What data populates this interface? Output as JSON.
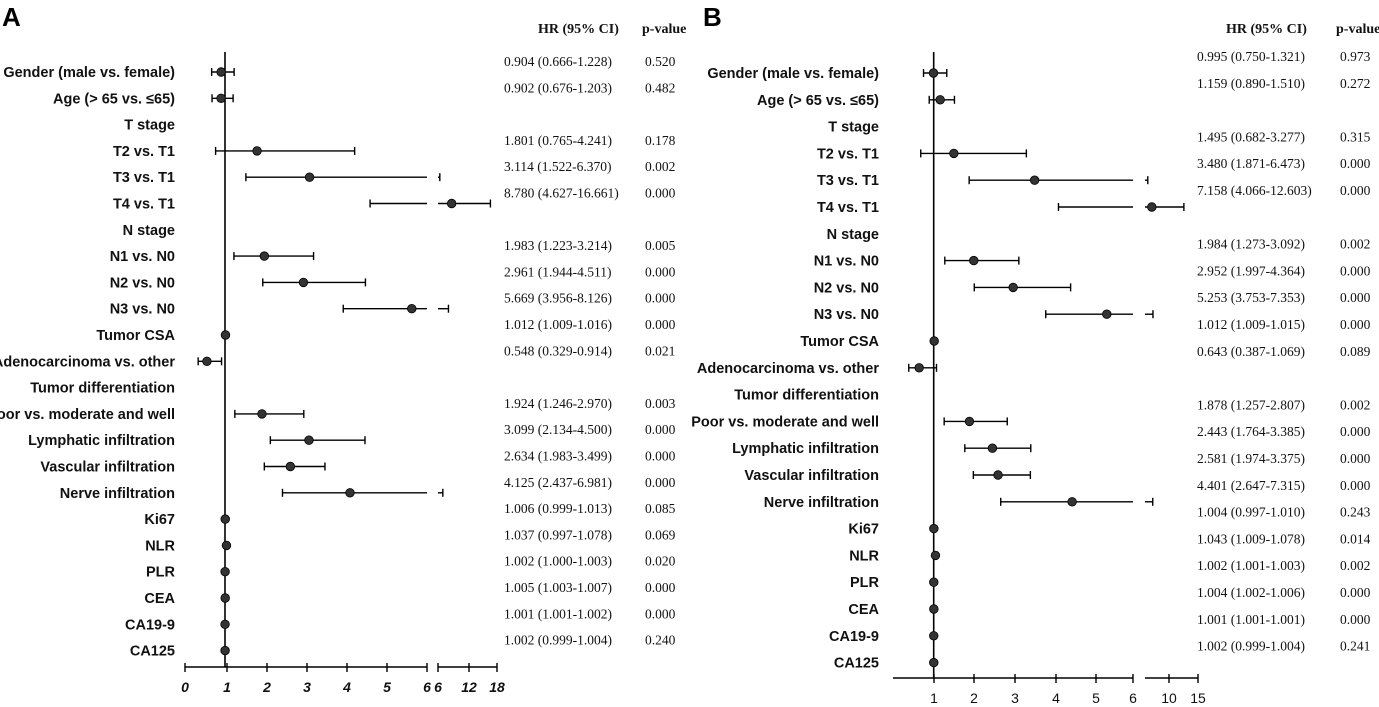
{
  "chart_data": [
    {
      "panel": "A",
      "type": "forest",
      "headers": {
        "hr": "HR (95% CI)",
        "p": "p-value"
      },
      "axis": {
        "ticks": [
          "0",
          "1",
          "2",
          "3",
          "4",
          "5",
          "6",
          "6",
          "12",
          "18"
        ]
      },
      "rows": [
        {
          "label": "Gender (male vs. female)",
          "hr": 0.904,
          "lo": 0.666,
          "hi": 1.228,
          "ci_text": "0.904 (0.666-1.228)",
          "p": "0.520"
        },
        {
          "label": "Age (> 65 vs. ≤65)",
          "hr": 0.902,
          "lo": 0.676,
          "hi": 1.203,
          "ci_text": "0.902 (0.676-1.203)",
          "p": "0.482"
        },
        {
          "label": "T stage",
          "hr": null
        },
        {
          "label": "T2 vs. T1",
          "hr": 1.801,
          "lo": 0.765,
          "hi": 4.241,
          "ci_text": "1.801 (0.765-4.241)",
          "p": "0.178"
        },
        {
          "label": "T3 vs. T1",
          "hr": 3.114,
          "lo": 1.522,
          "hi": 6.37,
          "ci_text": "3.114 (1.522-6.370)",
          "p": "0.002"
        },
        {
          "label": "T4 vs. T1",
          "hr": 8.78,
          "lo": 4.627,
          "hi": 16.661,
          "ci_text": "8.780 (4.627-16.661)",
          "p": "0.000"
        },
        {
          "label": "N stage",
          "hr": null
        },
        {
          "label": "N1 vs. N0",
          "hr": 1.983,
          "lo": 1.223,
          "hi": 3.214,
          "ci_text": "1.983 (1.223-3.214)",
          "p": "0.005"
        },
        {
          "label": "N2 vs. N0",
          "hr": 2.961,
          "lo": 1.944,
          "hi": 4.511,
          "ci_text": "2.961 (1.944-4.511)",
          "p": "0.000"
        },
        {
          "label": "N3 vs. N0",
          "hr": 5.669,
          "lo": 3.956,
          "hi": 8.126,
          "ci_text": "5.669 (3.956-8.126)",
          "p": "0.000"
        },
        {
          "label": "Tumor CSA",
          "hr": 1.012,
          "lo": 1.009,
          "hi": 1.016,
          "ci_text": "1.012 (1.009-1.016)",
          "p": "0.000"
        },
        {
          "label": "Adenocarcinoma vs. other",
          "hr": 0.548,
          "lo": 0.329,
          "hi": 0.914,
          "ci_text": "0.548 (0.329-0.914)",
          "p": "0.021"
        },
        {
          "label": "Tumor differentiation",
          "hr": null
        },
        {
          "label": "Poor vs. moderate and well",
          "hr": 1.924,
          "lo": 1.246,
          "hi": 2.97,
          "ci_text": "1.924 (1.246-2.970)",
          "p": "0.003"
        },
        {
          "label": "Lymphatic infiltration",
          "hr": 3.099,
          "lo": 2.134,
          "hi": 4.5,
          "ci_text": "3.099 (2.134-4.500)",
          "p": "0.000"
        },
        {
          "label": "Vascular infiltration",
          "hr": 2.634,
          "lo": 1.983,
          "hi": 3.499,
          "ci_text": "2.634 (1.983-3.499)",
          "p": "0.000"
        },
        {
          "label": "Nerve infiltration",
          "hr": 4.125,
          "lo": 2.437,
          "hi": 6.981,
          "ci_text": "4.125 (2.437-6.981)",
          "p": "0.000"
        },
        {
          "label": "Ki67",
          "hr": 1.006,
          "lo": 0.999,
          "hi": 1.013,
          "ci_text": "1.006 (0.999-1.013)",
          "p": "0.085"
        },
        {
          "label": "NLR",
          "hr": 1.037,
          "lo": 0.997,
          "hi": 1.078,
          "ci_text": "1.037 (0.997-1.078)",
          "p": "0.069"
        },
        {
          "label": "PLR",
          "hr": 1.002,
          "lo": 1.0,
          "hi": 1.003,
          "ci_text": "1.002 (1.000-1.003)",
          "p": "0.020"
        },
        {
          "label": "CEA",
          "hr": 1.005,
          "lo": 1.003,
          "hi": 1.007,
          "ci_text": "1.005 (1.003-1.007)",
          "p": "0.000"
        },
        {
          "label": "CA19-9",
          "hr": 1.001,
          "lo": 1.001,
          "hi": 1.002,
          "ci_text": "1.001 (1.001-1.002)",
          "p": "0.000"
        },
        {
          "label": "CA125",
          "hr": 1.002,
          "lo": 0.999,
          "hi": 1.004,
          "ci_text": "1.002 (0.999-1.004)",
          "p": "0.240"
        }
      ]
    },
    {
      "panel": "B",
      "type": "forest",
      "headers": {
        "hr": "HR (95% CI)",
        "p": "p-value"
      },
      "axis": {
        "ticks": [
          "1",
          "2",
          "3",
          "4",
          "5",
          "6",
          "10",
          "15"
        ]
      },
      "rows": [
        {
          "label": "Gender (male vs. female)",
          "hr": 0.995,
          "lo": 0.75,
          "hi": 1.321,
          "ci_text": "0.995 (0.750-1.321)",
          "p": "0.973"
        },
        {
          "label": "Age (> 65 vs. ≤65)",
          "hr": 1.159,
          "lo": 0.89,
          "hi": 1.51,
          "ci_text": "1.159 (0.890-1.510)",
          "p": "0.272"
        },
        {
          "label": "T stage",
          "hr": null
        },
        {
          "label": "T2 vs. T1",
          "hr": 1.495,
          "lo": 0.682,
          "hi": 3.277,
          "ci_text": "1.495 (0.682-3.277)",
          "p": "0.315"
        },
        {
          "label": "T3 vs. T1",
          "hr": 3.48,
          "lo": 1.871,
          "hi": 6.473,
          "ci_text": "3.480 (1.871-6.473)",
          "p": "0.000"
        },
        {
          "label": "T4 vs. T1",
          "hr": 7.158,
          "lo": 4.066,
          "hi": 12.603,
          "ci_text": "7.158 (4.066-12.603)",
          "p": "0.000"
        },
        {
          "label": "N stage",
          "hr": null
        },
        {
          "label": "N1 vs. N0",
          "hr": 1.984,
          "lo": 1.273,
          "hi": 3.092,
          "ci_text": "1.984 (1.273-3.092)",
          "p": "0.002"
        },
        {
          "label": "N2 vs. N0",
          "hr": 2.952,
          "lo": 1.997,
          "hi": 4.364,
          "ci_text": "2.952 (1.997-4.364)",
          "p": "0.000"
        },
        {
          "label": "N3 vs. N0",
          "hr": 5.253,
          "lo": 3.753,
          "hi": 7.353,
          "ci_text": "5.253 (3.753-7.353)",
          "p": "0.000"
        },
        {
          "label": "Tumor CSA",
          "hr": 1.012,
          "lo": 1.009,
          "hi": 1.015,
          "ci_text": "1.012 (1.009-1.015)",
          "p": "0.000"
        },
        {
          "label": "Adenocarcinoma vs. other",
          "hr": 0.643,
          "lo": 0.387,
          "hi": 1.069,
          "ci_text": "0.643 (0.387-1.069)",
          "p": "0.089"
        },
        {
          "label": "Tumor differentiation",
          "hr": null
        },
        {
          "label": "Poor vs. moderate and well",
          "hr": 1.878,
          "lo": 1.257,
          "hi": 2.807,
          "ci_text": "1.878 (1.257-2.807)",
          "p": "0.002"
        },
        {
          "label": "Lymphatic infiltration",
          "hr": 2.443,
          "lo": 1.764,
          "hi": 3.385,
          "ci_text": "2.443 (1.764-3.385)",
          "p": "0.000"
        },
        {
          "label": "Vascular infiltration",
          "hr": 2.581,
          "lo": 1.974,
          "hi": 3.375,
          "ci_text": "2.581 (1.974-3.375)",
          "p": "0.000"
        },
        {
          "label": "Nerve infiltration",
          "hr": 4.401,
          "lo": 2.647,
          "hi": 7.315,
          "ci_text": "4.401 (2.647-7.315)",
          "p": "0.000"
        },
        {
          "label": "Ki67",
          "hr": 1.004,
          "lo": 0.997,
          "hi": 1.01,
          "ci_text": "1.004 (0.997-1.010)",
          "p": "0.243"
        },
        {
          "label": "NLR",
          "hr": 1.043,
          "lo": 1.009,
          "hi": 1.078,
          "ci_text": "1.043 (1.009-1.078)",
          "p": "0.014"
        },
        {
          "label": "PLR",
          "hr": 1.002,
          "lo": 1.001,
          "hi": 1.003,
          "ci_text": "1.002 (1.001-1.003)",
          "p": "0.002"
        },
        {
          "label": "CEA",
          "hr": 1.004,
          "lo": 1.002,
          "hi": 1.006,
          "ci_text": "1.004 (1.002-1.006)",
          "p": "0.000"
        },
        {
          "label": "CA19-9",
          "hr": 1.001,
          "lo": 1.001,
          "hi": 1.001,
          "ci_text": "1.001 (1.001-1.001)",
          "p": "0.000"
        },
        {
          "label": "CA125",
          "hr": 1.002,
          "lo": 0.999,
          "hi": 1.004,
          "ci_text": "1.002 (0.999-1.004)",
          "p": "0.241"
        }
      ]
    }
  ],
  "colors": {
    "marker": "#333333",
    "line": "#000000"
  }
}
